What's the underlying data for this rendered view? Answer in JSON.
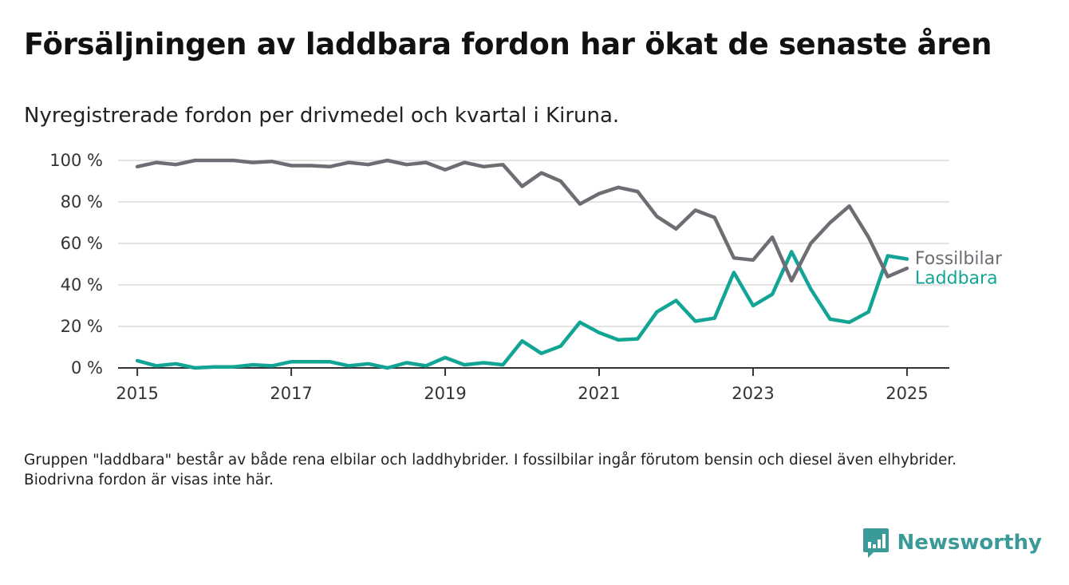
{
  "title": "Försäljningen av laddbara fordon har ökat de senaste åren",
  "subtitle": "Nyregistrerade fordon per drivmedel och kvartal i Kiruna.",
  "footnote": "Gruppen \"laddbara\" består av både rena elbilar och laddhybrider. I fossilbilar ingår förutom bensin och diesel även elhybrider. Biodrivna fordon är visas inte här.",
  "brand": {
    "name": "Newsworthy",
    "icon": "newsworthy-logo-icon"
  },
  "colors": {
    "fossil": "#6e6d74",
    "laddbara": "#12a596",
    "grid": "#dcdcdc",
    "axis": "#333333"
  },
  "chart_data": {
    "type": "line",
    "x_unit": "year (quarterly points)",
    "x": [
      2015.0,
      2015.25,
      2015.5,
      2015.75,
      2016.0,
      2016.25,
      2016.5,
      2016.75,
      2017.0,
      2017.25,
      2017.5,
      2017.75,
      2018.0,
      2018.25,
      2018.5,
      2018.75,
      2019.0,
      2019.25,
      2019.5,
      2019.75,
      2020.0,
      2020.25,
      2020.5,
      2020.75,
      2021.0,
      2021.25,
      2021.5,
      2021.75,
      2022.0,
      2022.25,
      2022.5,
      2022.75,
      2023.0,
      2023.25,
      2023.5,
      2023.75,
      2024.0,
      2024.25,
      2024.5,
      2024.75,
      2025.0
    ],
    "series": [
      {
        "name": "Fossilbilar",
        "color": "#6e6d74",
        "values": [
          97,
          99,
          98,
          100,
          100,
          100,
          99,
          99.5,
          97.5,
          97.5,
          97,
          99,
          98,
          100,
          98,
          99,
          95.5,
          99,
          97,
          98,
          87.5,
          94,
          90,
          79,
          84,
          87,
          85,
          73,
          67,
          76,
          72.5,
          53,
          52,
          63,
          42,
          60,
          70,
          78,
          63,
          44,
          48
        ]
      },
      {
        "name": "Laddbara",
        "color": "#12a596",
        "values": [
          3.5,
          1,
          2,
          0,
          0.5,
          0.5,
          1.5,
          1,
          3,
          3,
          3,
          1,
          2,
          0,
          2.5,
          1,
          5,
          1.5,
          2.5,
          1.5,
          13,
          7,
          10.5,
          22,
          17,
          13.5,
          14,
          27,
          32.5,
          22.5,
          24,
          46,
          30,
          35.5,
          56,
          38,
          23.5,
          22,
          27,
          54,
          52.5
        ]
      }
    ],
    "x_ticks": [
      "2015",
      "2017",
      "2019",
      "2021",
      "2023",
      "2025"
    ],
    "x_tick_values": [
      2015,
      2017,
      2019,
      2021,
      2023,
      2025
    ],
    "y_ticks": [
      "0 %",
      "20 %",
      "40 %",
      "60 %",
      "80 %",
      "100 %"
    ],
    "y_tick_values": [
      0,
      20,
      40,
      60,
      80,
      100
    ],
    "xlim": [
      2014.75,
      2025.55
    ],
    "ylim": [
      0,
      100
    ],
    "grid": "horizontal",
    "legend": "direct labels at line ends"
  }
}
